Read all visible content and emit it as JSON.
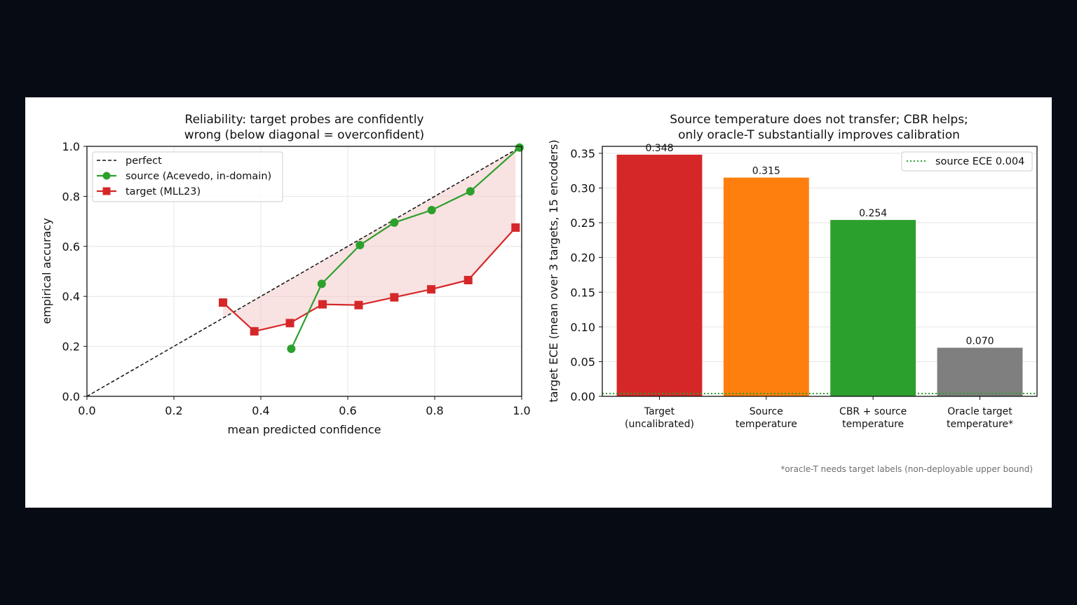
{
  "footnote": "*oracle-T needs target labels (non-deployable upper bound)",
  "colors": {
    "perfect": "#111111",
    "source": "#2ca02c",
    "target": "#d62728",
    "shade": "#f3c6c6",
    "bars": [
      "#d62728",
      "#ff7f0e",
      "#2ca02c",
      "#7f7f7f"
    ],
    "source_ece_line": "#2ca02c"
  },
  "chart_data": [
    {
      "type": "line",
      "title": [
        "Reliability: target probes are confidently",
        "wrong (below diagonal = overconfident)"
      ],
      "xlabel": "mean predicted confidence",
      "ylabel": "empirical accuracy",
      "xlim": [
        0.0,
        1.0
      ],
      "ylim": [
        0.0,
        1.0
      ],
      "xticks": [
        "0.0",
        "0.2",
        "0.4",
        "0.6",
        "0.8",
        "1.0"
      ],
      "yticks": [
        "0.0",
        "0.2",
        "0.4",
        "0.6",
        "0.8",
        "1.0"
      ],
      "grid": true,
      "legend_position": "upper-left",
      "series": [
        {
          "name": "perfect",
          "style": "dashed",
          "x": [
            0.0,
            1.0
          ],
          "y": [
            0.0,
            1.0
          ]
        },
        {
          "name": "source (Acevedo, in-domain)",
          "marker": "circle",
          "x": [
            0.47,
            0.54,
            0.628,
            0.707,
            0.793,
            0.882,
            0.995
          ],
          "y": [
            0.19,
            0.45,
            0.605,
            0.695,
            0.745,
            0.82,
            0.995
          ]
        },
        {
          "name": "target (MLL23)",
          "marker": "square",
          "x": [
            0.313,
            0.385,
            0.467,
            0.542,
            0.625,
            0.707,
            0.792,
            0.877,
            0.986
          ],
          "y": [
            0.375,
            0.26,
            0.293,
            0.368,
            0.365,
            0.396,
            0.428,
            0.465,
            0.675
          ]
        }
      ],
      "shaded_region": "between diagonal and target curve"
    },
    {
      "type": "bar",
      "title": [
        "Source temperature does not transfer; CBR helps;",
        "only oracle-T substantially improves calibration"
      ],
      "ylabel": "target ECE (mean over 3 targets, 15 encoders)",
      "categories": [
        [
          "Target",
          "(uncalibrated)"
        ],
        [
          "Source",
          "temperature"
        ],
        [
          "CBR + source",
          "temperature"
        ],
        [
          "Oracle target",
          "temperature*"
        ]
      ],
      "values": [
        0.348,
        0.315,
        0.254,
        0.07
      ],
      "value_labels": [
        "0.348",
        "0.315",
        "0.254",
        "0.070"
      ],
      "ylim": [
        0.0,
        0.36
      ],
      "yticks": [
        "0.00",
        "0.05",
        "0.10",
        "0.15",
        "0.20",
        "0.25",
        "0.30",
        "0.35"
      ],
      "grid": true,
      "reference_line": {
        "name": "source ECE 0.004",
        "value": 0.004,
        "style": "dotted"
      },
      "legend_position": "upper-right"
    }
  ]
}
